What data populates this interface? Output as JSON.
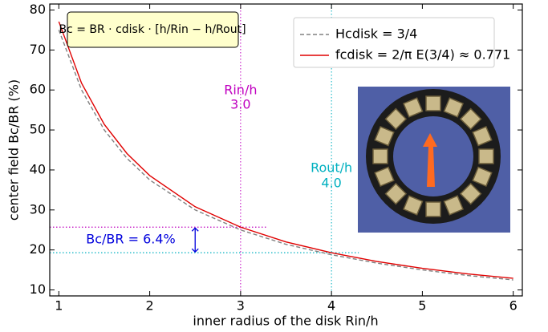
{
  "chart_data": {
    "type": "line",
    "xlabel": "inner radius of the disk Rin/h",
    "ylabel": "center field Bc/BR (%)",
    "x": [
      1,
      1.25,
      1.5,
      1.75,
      2,
      2.5,
      3,
      3.5,
      4,
      4.5,
      5,
      5.5,
      6
    ],
    "series": [
      {
        "name": "Hcdisk = 3/4",
        "color": "#808080",
        "dash": true,
        "values": [
          75,
          60,
          50,
          42.9,
          37.5,
          30,
          25,
          21.4,
          18.8,
          16.7,
          15,
          13.6,
          12.5
        ]
      },
      {
        "name": "fcdisk = 2/π E(3/4) ≈ 0.771",
        "color": "#e00000",
        "dash": false,
        "values": [
          77.1,
          61.7,
          51.4,
          44.1,
          38.6,
          30.8,
          25.7,
          22.0,
          19.3,
          17.1,
          15.4,
          14.0,
          12.9
        ]
      }
    ],
    "xlim": [
      0.9,
      6.1
    ],
    "ylim": [
      8.5,
      81.5
    ],
    "xticks": [
      1,
      2,
      3,
      4,
      5,
      6
    ],
    "yticks": [
      10,
      20,
      30,
      40,
      50,
      60,
      70,
      80
    ],
    "legend": "upper right",
    "formula": "Bc = BR · cdisk · [h/Rin − h/Rout]",
    "vlines": [
      {
        "x": 3,
        "color": "#c000c0"
      },
      {
        "x": 4,
        "color": "#00b0c0"
      }
    ],
    "hlines": [
      {
        "y": 25.7,
        "x_end": 3.3,
        "color": "#c000c0"
      },
      {
        "y": 19.3,
        "x_end": 4.3,
        "color": "#00b0c0"
      }
    ],
    "ratio_arrow": {
      "x": 2.5,
      "from": 19.3,
      "to": 25.7,
      "label": "Bc/BR = 6.4%",
      "color": "#0000dd"
    },
    "radius_labels": [
      {
        "name": "Rin/h",
        "value": "3.0",
        "color": "#c000c0"
      },
      {
        "name": "Rout/h",
        "value": "4.0",
        "color": "#00b0c0"
      }
    ]
  }
}
